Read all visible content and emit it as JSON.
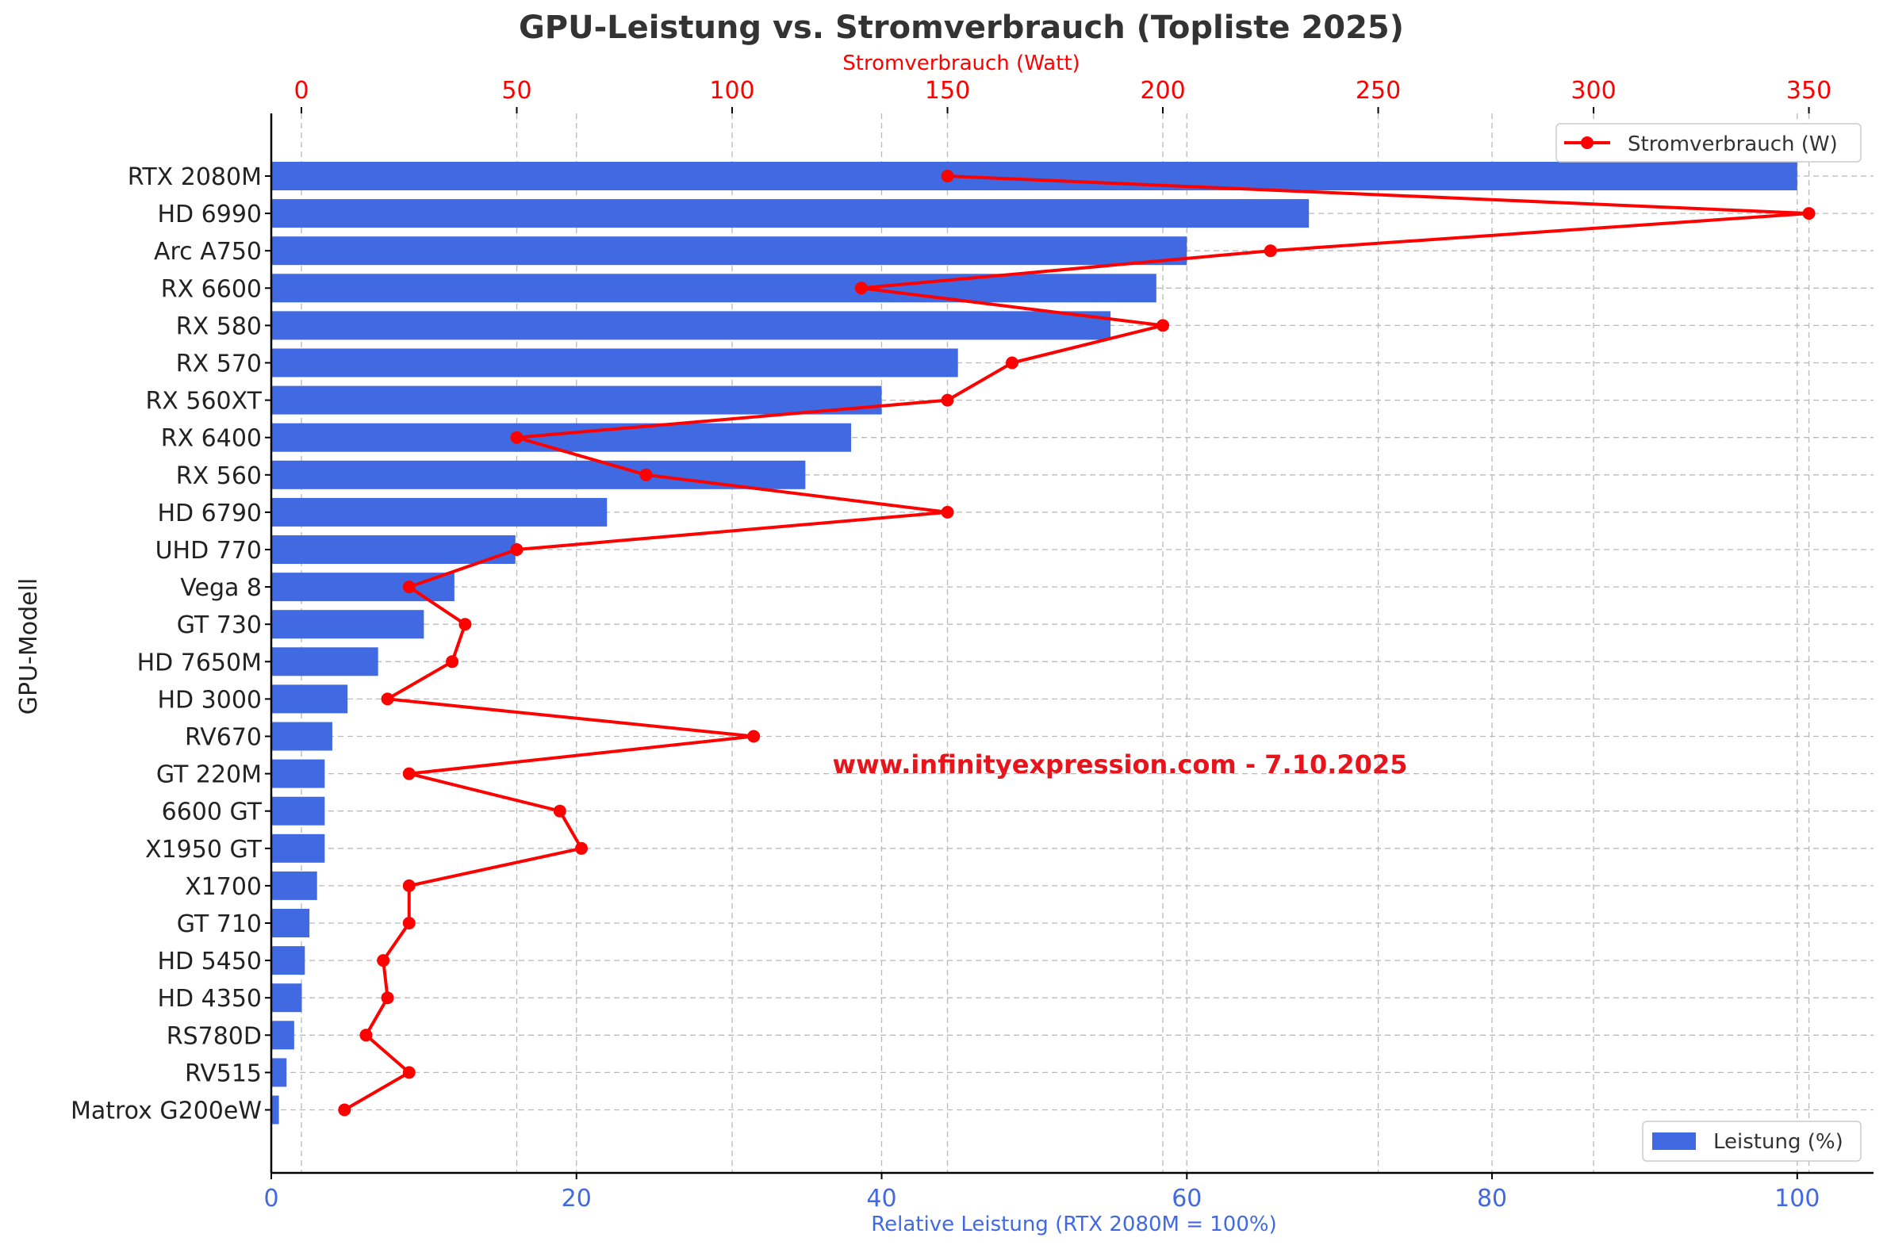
{
  "chart_data": {
    "type": "bar",
    "title": "GPU-Leistung vs. Stromverbrauch (Topliste 2025)",
    "orientation": "horizontal",
    "categories": [
      "RTX 2080M",
      "HD 6990",
      "Arc A750",
      "RX 6600",
      "RX 580",
      "RX 570",
      "RX 560XT",
      "RX 6400",
      "RX 560",
      "HD 6790",
      "UHD 770",
      "Vega 8",
      "GT 730",
      "HD 7650M",
      "HD 3000",
      "RV670",
      "GT 220M",
      "6600 GT",
      "X1950 GT",
      "X1700",
      "GT 710",
      "HD 5450",
      "HD 4350",
      "RS780D",
      "RV515",
      "Matrox G200eW"
    ],
    "series": [
      {
        "name": "Leistung (%)",
        "axis": "bottom",
        "color": "#4169e1",
        "values": [
          100,
          68,
          60,
          58,
          55,
          45,
          40,
          38,
          35,
          22,
          16,
          12,
          10,
          7,
          5,
          4,
          3.5,
          3.5,
          3.5,
          3,
          2.5,
          2.2,
          2,
          1.5,
          1,
          0.5
        ]
      },
      {
        "name": "Stromverbrauch (W)",
        "axis": "top",
        "color": "#ff0000",
        "values": [
          150,
          350,
          225,
          130,
          200,
          165,
          150,
          50,
          80,
          150,
          50,
          25,
          38,
          35,
          20,
          105,
          25,
          60,
          65,
          25,
          25,
          19,
          20,
          15,
          25,
          10
        ]
      }
    ],
    "xlabel": "Relative Leistung (RTX 2080M = 100%)",
    "xlabel_top": "Stromverbrauch (Watt)",
    "ylabel": "GPU-Modell",
    "xlim": [
      0,
      105
    ],
    "xticks": [
      0,
      20,
      40,
      60,
      80,
      100
    ],
    "xlim_top": [
      -7,
      365
    ],
    "xticks_top": [
      0,
      50,
      100,
      150,
      200,
      250,
      300,
      350
    ],
    "grid": true,
    "legend_line_placement": "top-right",
    "legend_bar_placement": "bottom-right",
    "bottom_axis_color": "#4169e1",
    "top_axis_color": "#ff0000"
  },
  "watermark": "www.infinityexpression.com - 7.10.2025"
}
